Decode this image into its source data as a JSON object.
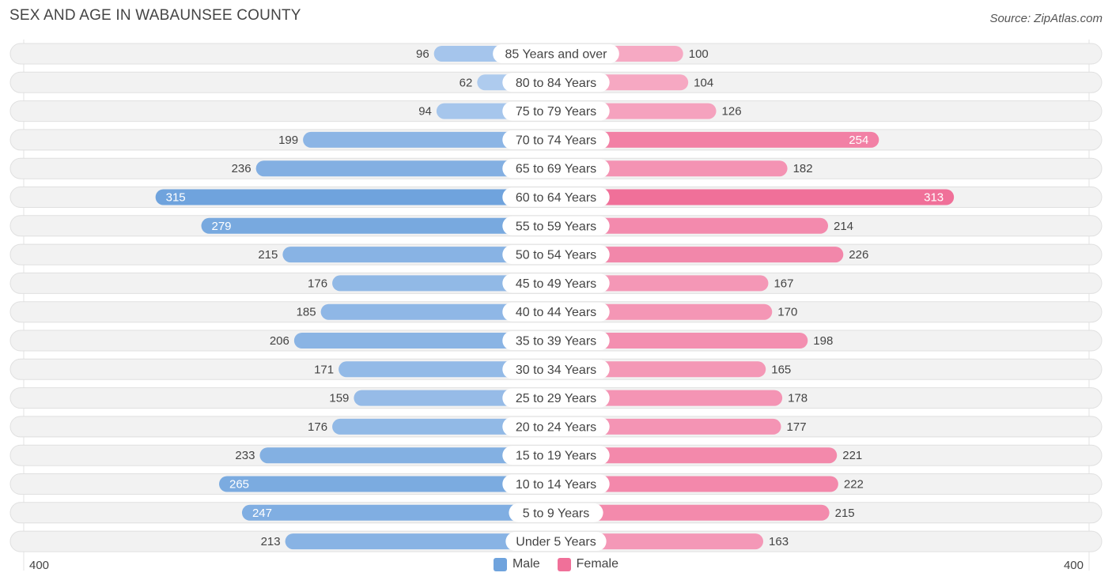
{
  "title": "SEX AND AGE IN WABAUNSEE COUNTY",
  "source": "Source: ZipAtlas.com",
  "legend": {
    "male": "Male",
    "female": "Female"
  },
  "axis": {
    "left_label": "400",
    "right_label": "400"
  },
  "colors": {
    "male_strong": "#6fa3dd",
    "male_light": "#aecbee",
    "female_strong": "#f07099",
    "female_light": "#f6a9c3",
    "row_bg": "#f2f2f2",
    "row_border": "#e0e0e0",
    "text": "#444444"
  },
  "chart_data": {
    "type": "bar",
    "orientation": "horizontal-diverging",
    "categories": [
      "85 Years and over",
      "80 to 84 Years",
      "75 to 79 Years",
      "70 to 74 Years",
      "65 to 69 Years",
      "60 to 64 Years",
      "55 to 59 Years",
      "50 to 54 Years",
      "45 to 49 Years",
      "40 to 44 Years",
      "35 to 39 Years",
      "30 to 34 Years",
      "25 to 29 Years",
      "20 to 24 Years",
      "15 to 19 Years",
      "10 to 14 Years",
      "5 to 9 Years",
      "Under 5 Years"
    ],
    "series": [
      {
        "name": "Male",
        "values": [
          96,
          62,
          94,
          199,
          236,
          315,
          279,
          215,
          176,
          185,
          206,
          171,
          159,
          176,
          233,
          265,
          247,
          213
        ]
      },
      {
        "name": "Female",
        "values": [
          100,
          104,
          126,
          254,
          182,
          313,
          214,
          226,
          167,
          170,
          198,
          165,
          178,
          177,
          221,
          222,
          215,
          163
        ]
      }
    ],
    "xlim": [
      -400,
      400
    ],
    "legend_position": "bottom-center",
    "grid": false
  }
}
